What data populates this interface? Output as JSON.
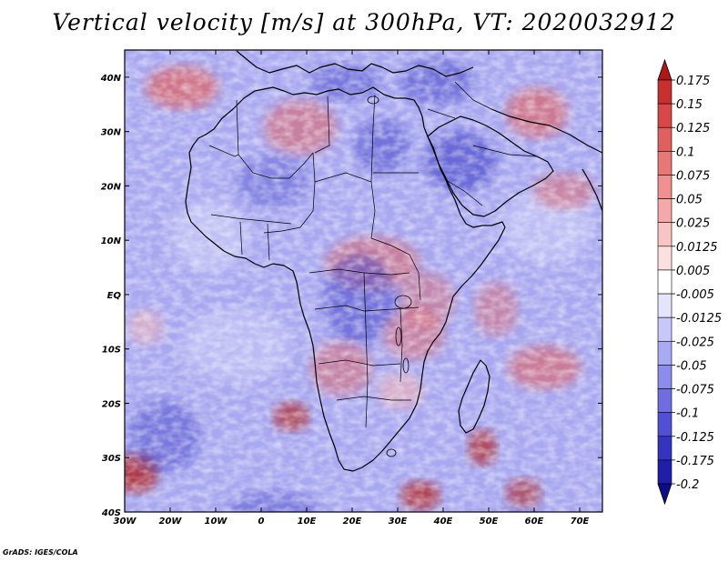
{
  "title": "Vertical velocity [m/s] at 300hPa, VT: 2020032912",
  "credit": "GrADS: IGES/COLA",
  "map": {
    "lon_range": [
      -30,
      75
    ],
    "lat_range": [
      -40,
      45
    ],
    "x_ticks": [
      "30W",
      "20W",
      "10W",
      "0",
      "10E",
      "20E",
      "30E",
      "40E",
      "50E",
      "60E",
      "70E"
    ],
    "y_ticks": [
      "40N",
      "30N",
      "20N",
      "10N",
      "EQ",
      "10S",
      "20S",
      "30S",
      "40S"
    ]
  },
  "colorbar": {
    "levels": [
      "0.175",
      "0.15",
      "0.125",
      "0.1",
      "0.075",
      "0.05",
      "0.025",
      "0.0125",
      "0.005",
      "-0.005",
      "-0.0125",
      "-0.025",
      "-0.05",
      "-0.075",
      "-0.1",
      "-0.125",
      "-0.175",
      "-0.2"
    ],
    "colors": [
      "#b01818",
      "#c83030",
      "#d84848",
      "#e06060",
      "#e87878",
      "#f09090",
      "#f4a8a8",
      "#f8c4c4",
      "#fce0e0",
      "#ffffff",
      "#e4e4fc",
      "#c8c8f8",
      "#aaaaf4",
      "#8c8cec",
      "#6e6ee0",
      "#5050d4",
      "#3434c0",
      "#1e1ea8",
      "#0c0c88"
    ]
  },
  "palette": {
    "background_blue": "#a8a8f0",
    "deep_blue": "#4040c8",
    "light_blue": "#d0d0f8",
    "red": "#e06060",
    "deep_red": "#b02020",
    "light_red": "#f4b4b4",
    "white": "#ffffff"
  }
}
